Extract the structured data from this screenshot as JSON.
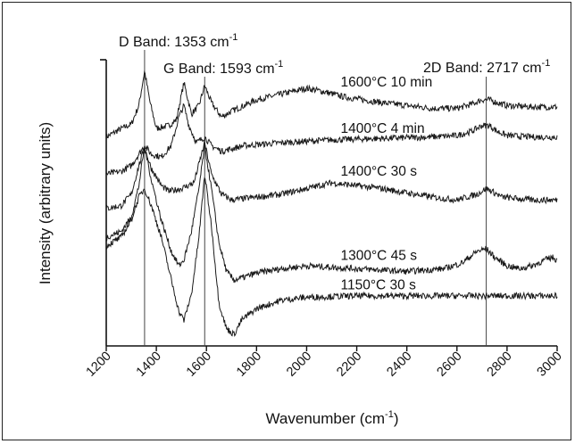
{
  "chart_data": {
    "type": "line",
    "xlabel": "Wavenumber (cm",
    "xlabel_sup": "-1",
    "xlabel_close": ")",
    "ylabel": "Intensity (arbitrary units)",
    "xlim": [
      1200,
      3000
    ],
    "ylim": [
      0,
      100
    ],
    "x_ticks": [
      "1200",
      "1400",
      "1600",
      "1800",
      "2000",
      "2200",
      "2400",
      "2600",
      "2800",
      "3000"
    ],
    "y_ticks_shown": false,
    "grid": false,
    "legend": "none",
    "annotations": [
      {
        "text": "D Band: 1353 cm",
        "sup": "-1",
        "x": 1353
      },
      {
        "text": "G Band: 1593 cm",
        "sup": "-1",
        "x": 1593
      },
      {
        "text": "2D Band: 2717 cm",
        "sup": "-1",
        "x": 2717
      }
    ],
    "series": [
      {
        "name": "1600°C 10 min",
        "label_x": 2100,
        "points": [
          [
            1200,
            73
          ],
          [
            1250,
            75.5
          ],
          [
            1300,
            77.5
          ],
          [
            1330,
            84
          ],
          [
            1353,
            96
          ],
          [
            1375,
            85
          ],
          [
            1400,
            76
          ],
          [
            1450,
            77
          ],
          [
            1480,
            79
          ],
          [
            1510,
            92
          ],
          [
            1540,
            81
          ],
          [
            1570,
            84
          ],
          [
            1593,
            91
          ],
          [
            1620,
            85
          ],
          [
            1660,
            80
          ],
          [
            1700,
            82
          ],
          [
            1800,
            86
          ],
          [
            1900,
            88
          ],
          [
            2000,
            90
          ],
          [
            2060,
            89
          ],
          [
            2150,
            87
          ],
          [
            2300,
            85
          ],
          [
            2500,
            83
          ],
          [
            2600,
            83
          ],
          [
            2660,
            84.5
          ],
          [
            2700,
            86
          ],
          [
            2730,
            86
          ],
          [
            2760,
            85
          ],
          [
            2800,
            84
          ],
          [
            2900,
            83.5
          ],
          [
            3000,
            83.5
          ]
        ]
      },
      {
        "name": "1400°C  4 min",
        "label_x": 2100,
        "points": [
          [
            1200,
            60
          ],
          [
            1260,
            61
          ],
          [
            1300,
            63
          ],
          [
            1330,
            67
          ],
          [
            1353,
            70
          ],
          [
            1380,
            67
          ],
          [
            1420,
            66
          ],
          [
            1460,
            70
          ],
          [
            1490,
            80
          ],
          [
            1510,
            84
          ],
          [
            1530,
            77
          ],
          [
            1560,
            71
          ],
          [
            1593,
            73
          ],
          [
            1620,
            70
          ],
          [
            1660,
            68
          ],
          [
            1750,
            70
          ],
          [
            1900,
            71
          ],
          [
            2100,
            72
          ],
          [
            2300,
            72.5
          ],
          [
            2500,
            73
          ],
          [
            2600,
            73.5
          ],
          [
            2660,
            75
          ],
          [
            2700,
            77
          ],
          [
            2730,
            77
          ],
          [
            2760,
            75
          ],
          [
            2800,
            73.5
          ],
          [
            2900,
            73
          ],
          [
            3000,
            73
          ]
        ]
      },
      {
        "name": "1400°C 30 s",
        "label_x": 2100,
        "points": [
          [
            1200,
            48
          ],
          [
            1260,
            49
          ],
          [
            1300,
            53
          ],
          [
            1330,
            63
          ],
          [
            1353,
            69
          ],
          [
            1380,
            62
          ],
          [
            1420,
            56
          ],
          [
            1450,
            54
          ],
          [
            1500,
            55
          ],
          [
            1550,
            57
          ],
          [
            1593,
            71
          ],
          [
            1620,
            60
          ],
          [
            1660,
            53
          ],
          [
            1700,
            51
          ],
          [
            1800,
            52
          ],
          [
            1900,
            53
          ],
          [
            2000,
            55
          ],
          [
            2100,
            57
          ],
          [
            2200,
            56
          ],
          [
            2300,
            55
          ],
          [
            2400,
            53.5
          ],
          [
            2500,
            52
          ],
          [
            2600,
            51
          ],
          [
            2680,
            53
          ],
          [
            2717,
            55
          ],
          [
            2740,
            54
          ],
          [
            2780,
            52
          ],
          [
            2900,
            51
          ],
          [
            3000,
            51
          ]
        ]
      },
      {
        "name": "1300°C 45 s",
        "label_x": 2100,
        "points": [
          [
            1200,
            38
          ],
          [
            1260,
            40
          ],
          [
            1300,
            45
          ],
          [
            1330,
            56
          ],
          [
            1353,
            70
          ],
          [
            1380,
            58
          ],
          [
            1420,
            44
          ],
          [
            1460,
            33
          ],
          [
            1490,
            28
          ],
          [
            1510,
            30
          ],
          [
            1540,
            40
          ],
          [
            1570,
            55
          ],
          [
            1593,
            70
          ],
          [
            1620,
            55
          ],
          [
            1650,
            36
          ],
          [
            1680,
            26
          ],
          [
            1710,
            23
          ],
          [
            1750,
            24
          ],
          [
            1800,
            25.5
          ],
          [
            1900,
            27
          ],
          [
            2000,
            28
          ],
          [
            2200,
            27
          ],
          [
            2400,
            26
          ],
          [
            2550,
            27
          ],
          [
            2620,
            29
          ],
          [
            2680,
            33
          ],
          [
            2717,
            34
          ],
          [
            2750,
            31
          ],
          [
            2800,
            28
          ],
          [
            2850,
            27
          ],
          [
            2900,
            28
          ],
          [
            2950,
            30
          ],
          [
            2980,
            31
          ],
          [
            3000,
            30
          ]
        ]
      },
      {
        "name": "1150°C 30 s",
        "label_x": 2100,
        "points": [
          [
            1200,
            35
          ],
          [
            1260,
            38
          ],
          [
            1300,
            44
          ],
          [
            1330,
            52
          ],
          [
            1353,
            55
          ],
          [
            1380,
            49
          ],
          [
            1420,
            38
          ],
          [
            1460,
            23
          ],
          [
            1490,
            12
          ],
          [
            1510,
            9
          ],
          [
            1540,
            18
          ],
          [
            1570,
            38
          ],
          [
            1593,
            60
          ],
          [
            1620,
            42
          ],
          [
            1650,
            15
          ],
          [
            1680,
            6
          ],
          [
            1710,
            4
          ],
          [
            1740,
            9
          ],
          [
            1800,
            13
          ],
          [
            1900,
            16
          ],
          [
            2000,
            17
          ],
          [
            2200,
            17.5
          ],
          [
            2400,
            17.5
          ],
          [
            2600,
            17.5
          ],
          [
            2700,
            17.5
          ],
          [
            2800,
            17.5
          ],
          [
            2900,
            17.5
          ],
          [
            3000,
            17.5
          ]
        ]
      }
    ]
  }
}
